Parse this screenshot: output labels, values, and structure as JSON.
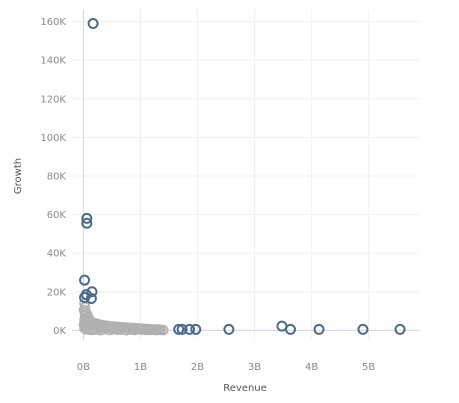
{
  "chart_data": {
    "type": "scatter",
    "xlabel": "Revenue",
    "ylabel": "Growth",
    "xlim": [
      -0.2,
      5.9
    ],
    "ylim": [
      -5000,
      166000
    ],
    "x_ticks": [
      0,
      1,
      2,
      3,
      4,
      5
    ],
    "x_tick_labels": [
      "0B",
      "1B",
      "2B",
      "3B",
      "4B",
      "5B"
    ],
    "y_ticks": [
      0,
      20000,
      40000,
      60000,
      80000,
      100000,
      120000,
      140000,
      160000
    ],
    "y_tick_labels": [
      "0K",
      "20K",
      "40K",
      "60K",
      "80K",
      "100K",
      "120K",
      "140K",
      "160K"
    ],
    "grid": true,
    "colors": {
      "highlight": "#4e6a8a",
      "muted": "#b0b0b0"
    },
    "series": [
      {
        "color": "highlight",
        "points": [
          [
            0.17,
            159000
          ],
          [
            0.06,
            58000
          ],
          [
            0.06,
            55500
          ],
          [
            0.02,
            26000
          ],
          [
            0.15,
            20000
          ],
          [
            0.05,
            18500
          ],
          [
            0.02,
            17000
          ],
          [
            0.14,
            16500
          ],
          [
            1.67,
            500
          ],
          [
            1.73,
            500
          ],
          [
            1.86,
            500
          ],
          [
            1.97,
            500
          ],
          [
            2.55,
            500
          ],
          [
            3.48,
            2200
          ],
          [
            3.63,
            500
          ],
          [
            4.13,
            500
          ],
          [
            4.9,
            500
          ],
          [
            5.55,
            500
          ]
        ]
      },
      {
        "color": "muted",
        "points": [
          [
            0.02,
            14000
          ],
          [
            0.03,
            12000
          ],
          [
            0.01,
            10500
          ],
          [
            0.04,
            9500
          ],
          [
            0.06,
            8500
          ],
          [
            0.03,
            7500
          ],
          [
            0.08,
            7000
          ],
          [
            0.05,
            6200
          ],
          [
            0.1,
            5800
          ],
          [
            0.02,
            5500
          ],
          [
            0.12,
            5000
          ],
          [
            0.07,
            4600
          ],
          [
            0.15,
            4200
          ],
          [
            0.04,
            4000
          ],
          [
            0.18,
            3800
          ],
          [
            0.22,
            3500
          ],
          [
            0.09,
            3300
          ],
          [
            0.26,
            3100
          ],
          [
            0.3,
            2900
          ],
          [
            0.14,
            2800
          ],
          [
            0.34,
            2600
          ],
          [
            0.38,
            2500
          ],
          [
            0.2,
            2400
          ],
          [
            0.42,
            2300
          ],
          [
            0.46,
            2100
          ],
          [
            0.5,
            2000
          ],
          [
            0.25,
            2000
          ],
          [
            0.55,
            1900
          ],
          [
            0.6,
            1800
          ],
          [
            0.32,
            1700
          ],
          [
            0.65,
            1600
          ],
          [
            0.7,
            1500
          ],
          [
            0.4,
            1500
          ],
          [
            0.75,
            1400
          ],
          [
            0.8,
            1300
          ],
          [
            0.48,
            1300
          ],
          [
            0.85,
            1200
          ],
          [
            0.9,
            1100
          ],
          [
            0.58,
            1200
          ],
          [
            0.95,
            1000
          ],
          [
            1.0,
            900
          ],
          [
            0.68,
            1000
          ],
          [
            1.05,
            800
          ],
          [
            1.1,
            700
          ],
          [
            0.78,
            900
          ],
          [
            1.15,
            600
          ],
          [
            1.2,
            500
          ],
          [
            0.88,
            700
          ],
          [
            1.25,
            400
          ],
          [
            1.3,
            500
          ],
          [
            0.98,
            600
          ],
          [
            0.02,
            1000
          ],
          [
            0.05,
            500
          ],
          [
            0.1,
            300
          ],
          [
            0.15,
            200
          ],
          [
            0.2,
            400
          ],
          [
            0.3,
            100
          ],
          [
            0.45,
            200
          ],
          [
            0.6,
            300
          ],
          [
            0.75,
            100
          ],
          [
            0.9,
            200
          ],
          [
            1.08,
            300
          ],
          [
            1.18,
            200
          ],
          [
            1.28,
            100
          ],
          [
            1.33,
            300
          ],
          [
            0.01,
            3000
          ],
          [
            0.03,
            2000
          ],
          [
            0.07,
            1500
          ],
          [
            0.12,
            1100
          ],
          [
            0.18,
            900
          ],
          [
            0.24,
            700
          ],
          [
            0.36,
            600
          ],
          [
            0.52,
            500
          ],
          [
            0.66,
            400
          ],
          [
            0.84,
            400
          ],
          [
            1.02,
            300
          ],
          [
            1.12,
            200
          ],
          [
            1.22,
            300
          ],
          [
            1.36,
            200
          ],
          [
            1.4,
            100
          ]
        ]
      }
    ]
  }
}
